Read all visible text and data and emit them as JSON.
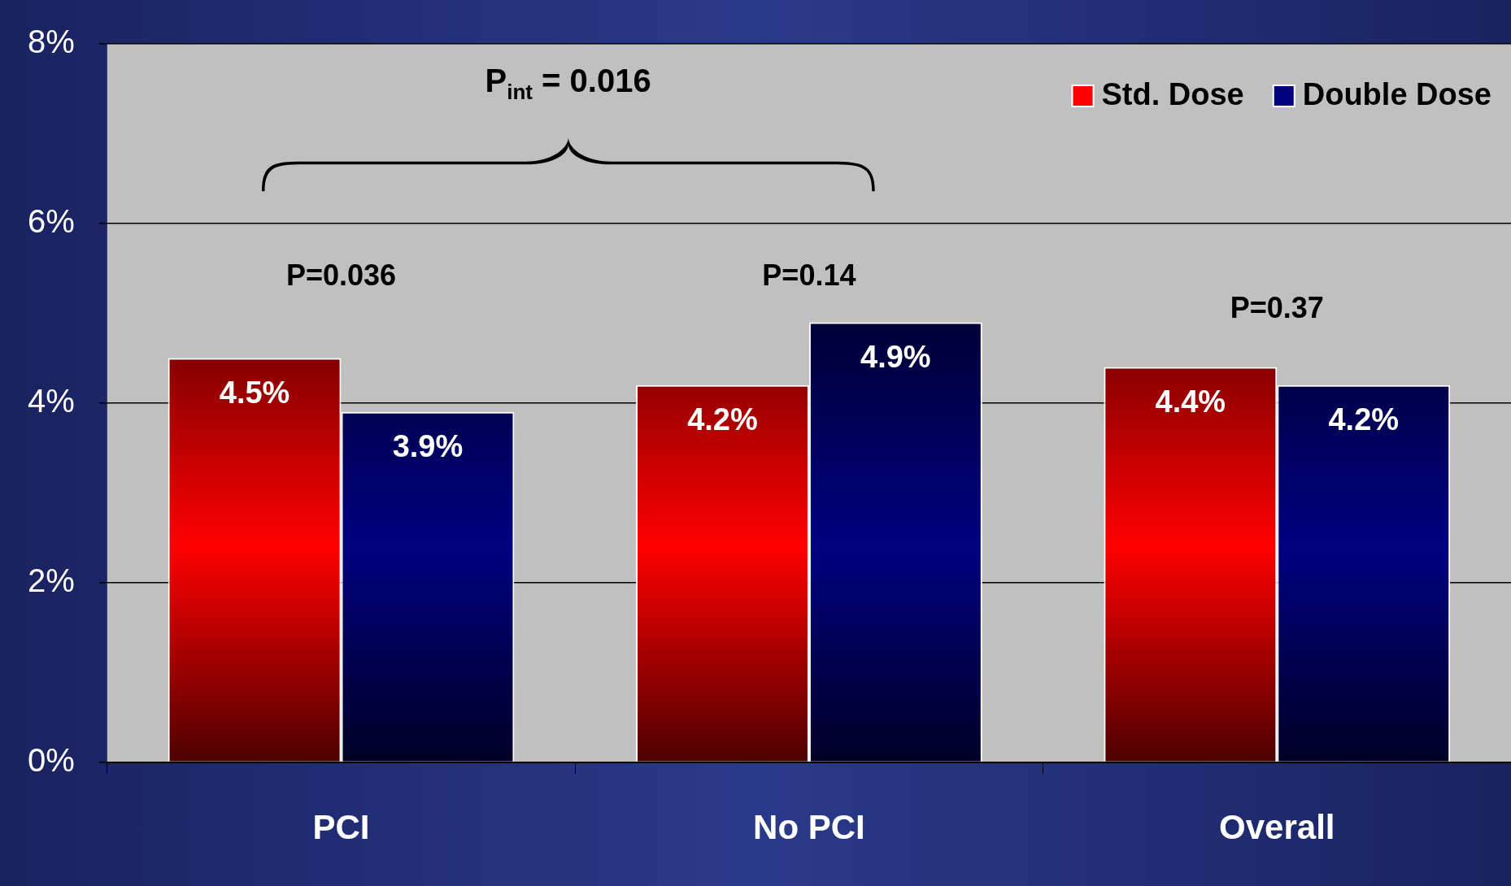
{
  "chart_data": {
    "type": "bar",
    "categories": [
      "PCI",
      "No PCI",
      "Overall"
    ],
    "series": [
      {
        "name": "Std. Dose",
        "color": "#ff0000",
        "values": [
          4.5,
          4.2,
          4.4
        ],
        "value_labels": [
          "4.5%",
          "4.2%",
          "4.4%"
        ]
      },
      {
        "name": "Double Dose",
        "color": "#000080",
        "values": [
          3.9,
          4.9,
          4.2
        ],
        "value_labels": [
          "3.9%",
          "4.9%",
          "4.2%"
        ]
      }
    ],
    "ylim": [
      0,
      8
    ],
    "yticks": [
      {
        "value": 0,
        "label": "0%"
      },
      {
        "value": 2,
        "label": "2%"
      },
      {
        "value": 4,
        "label": "4%"
      },
      {
        "value": 6,
        "label": "6%"
      },
      {
        "value": 8,
        "label": "8%"
      }
    ],
    "grid": "y",
    "legend": "top right",
    "annotations": [
      "P=0.036",
      "P=0.14",
      "P=0.37",
      "P$_{int}$ = 0.016"
    ]
  }
}
